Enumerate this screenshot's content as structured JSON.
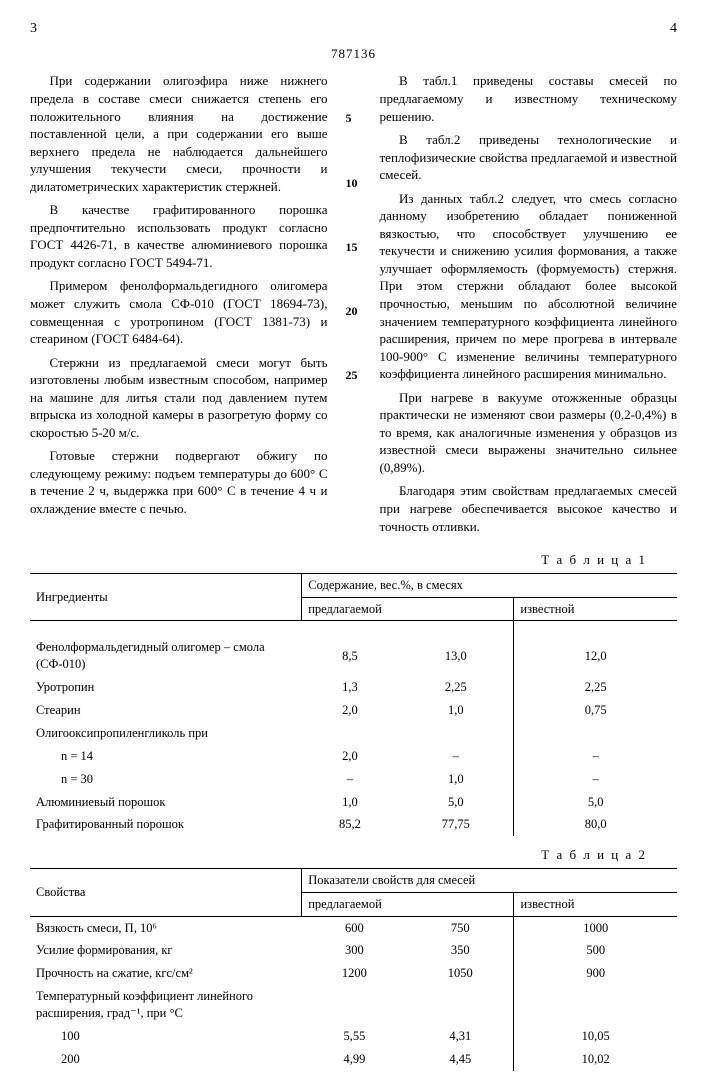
{
  "page_left_num": "3",
  "page_right_num": "4",
  "patent_number": "787136",
  "line_labels": [
    "5",
    "10",
    "15",
    "20",
    "25"
  ],
  "left_paragraphs": [
    "При содержании олигоэфира ниже нижнего предела в составе смеси снижается степень его положительного влияния на достижение поставленной цели, а при содержании его выше верхнего предела не наблюдается дальнейшего улучшения текучести смеси, прочности и дилатометрических характеристик стержней.",
    "В качестве графитированного порошка предпочтительно использовать продукт согласно ГОСТ 4426-71, в качестве алюминиевого порошка продукт согласно ГОСТ 5494-71.",
    "Примером фенолформальдегидного олигомера может служить смола СФ-010 (ГОСТ 18694-73), совмещенная с уротропином (ГОСТ 1381-73) и стеарином (ГОСТ 6484-64).",
    "Стержни из предлагаемой смеси могут быть изготовлены любым известным способом, например на машине для литья стали под давлением путем впрыска из холодной камеры в разогретую форму со скоростью 5-20 м/с.",
    "Готовые стержни подвергают обжигу по следующему режиму: подъем температуры до 600° С в течение 2 ч, выдержка при 600° С в течение 4 ч и охлаждение вместе с печью."
  ],
  "right_paragraphs": [
    "В табл.1 приведены составы смесей по предлагаемому и известному техническому решению.",
    "В табл.2 приведены технологические и теплофизические свойства предлагаемой и известной смесей.",
    "Из данных табл.2 следует, что смесь согласно данному изобретению обладает пониженной вязкостью, что способствует улучшению ее текучести и снижению усилия формования, а также улучшает оформляемость (формуемость) стержня. При этом стержни обладают более высокой прочностью, меньшим по абсолютной величине значением температурного коэффициента линейного расширения, причем по мере прогрева в интервале 100-900° С изменение величины температурного коэффициента линейного расширения минимально.",
    "При нагреве в вакууме отожженные образцы практически не изменяют свои размеры (0,2-0,4%) в то время, как аналогичные изменения у образцов из известной смеси выражены значительно сильнее (0,89%).",
    "Благодаря этим свойствам предлагаемых смесей при нагреве обеспечивается высокое качество и точность отливки."
  ],
  "table1": {
    "label": "Т а б л и ц а 1",
    "header_ingredients": "Ингредиенты",
    "header_content": "Содержание, вес.%, в смесях",
    "sub_proposed": "предлагаемой",
    "sub_known": "известной",
    "rows": [
      {
        "name": "Фенолформальдегидный олигомер – смола (СФ-010)",
        "v1": "8,5",
        "v2": "13,0",
        "v3": "12,0"
      },
      {
        "name": "Уротропин",
        "v1": "1,3",
        "v2": "2,25",
        "v3": "2,25"
      },
      {
        "name": "Стеарин",
        "v1": "2,0",
        "v2": "1,0",
        "v3": "0,75"
      },
      {
        "name": "Олигооксипропиленгликоль при",
        "v1": "",
        "v2": "",
        "v3": ""
      },
      {
        "name": "  n = 14",
        "v1": "2,0",
        "v2": "–",
        "v3": "–"
      },
      {
        "name": "  n = 30",
        "v1": "–",
        "v2": "1,0",
        "v3": "–"
      },
      {
        "name": "Алюминиевый порошок",
        "v1": "1,0",
        "v2": "5,0",
        "v3": "5,0"
      },
      {
        "name": "Графитированный порошок",
        "v1": "85,2",
        "v2": "77,75",
        "v3": "80,0"
      }
    ]
  },
  "table2": {
    "label": "Т а б л и ц а 2",
    "header_props": "Свойства",
    "header_indicators": "Показатели свойств для смесей",
    "sub_proposed": "предлагаемой",
    "sub_known": "известной",
    "rows": [
      {
        "name": "Вязкость смеси, П, 10⁶",
        "v1": "600",
        "v2": "750",
        "v3": "1000"
      },
      {
        "name": "Усилие формирования, кг",
        "v1": "300",
        "v2": "350",
        "v3": "500"
      },
      {
        "name": "Прочность на сжатие, кгс/см²",
        "v1": "1200",
        "v2": "1050",
        "v3": "900"
      },
      {
        "name": "Температурный коэффициент линейного расширения, град⁻¹, при °С",
        "v1": "",
        "v2": "",
        "v3": ""
      },
      {
        "name": "  100",
        "v1": "5,55",
        "v2": "4,31",
        "v3": "10,05"
      },
      {
        "name": "  200",
        "v1": "4,99",
        "v2": "4,45",
        "v3": "10,02"
      }
    ]
  }
}
